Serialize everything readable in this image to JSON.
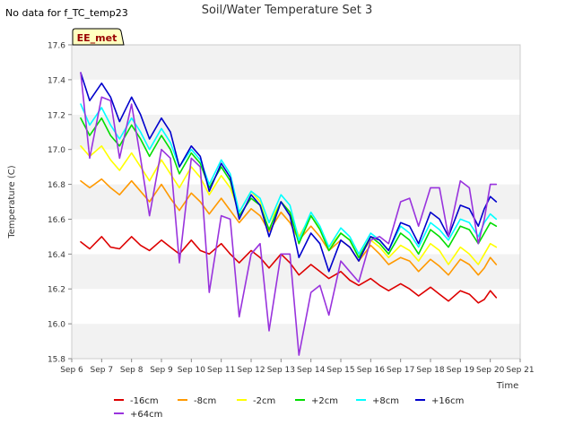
{
  "no_data_note": "No data for f_TC_temp23",
  "badge": "EE_met",
  "chart_data": {
    "type": "line",
    "title": "Soil/Water Temperature Set 3",
    "xlabel": "Time",
    "ylabel": "Temperature (C)",
    "xlim": [
      6,
      21
    ],
    "ylim": [
      15.8,
      17.6
    ],
    "yticks": [
      15.8,
      16.0,
      16.2,
      16.4,
      16.6,
      16.8,
      17.0,
      17.2,
      17.4,
      17.6
    ],
    "xticks": [
      6,
      7,
      8,
      9,
      10,
      11,
      12,
      13,
      14,
      15,
      16,
      17,
      18,
      19,
      20,
      21
    ],
    "xtick_labels": [
      "Sep 6",
      "Sep 7",
      "Sep 8",
      "Sep 9",
      "Sep 10",
      "Sep 11",
      "Sep 12",
      "Sep 13",
      "Sep 14",
      "Sep 15",
      "Sep 16",
      "Sep 17",
      "Sep 18",
      "Sep 19",
      "Sep 20",
      "Sep 21"
    ],
    "grid": "horizontal bands",
    "legend_position": "bottom",
    "series": [
      {
        "name": "-16cm",
        "color": "#dd0000",
        "x": [
          6.3,
          6.6,
          7.0,
          7.3,
          7.6,
          8.0,
          8.3,
          8.6,
          9.0,
          9.3,
          9.6,
          10.0,
          10.3,
          10.6,
          11.0,
          11.3,
          11.6,
          12.0,
          12.3,
          12.6,
          13.0,
          13.3,
          13.6,
          14.0,
          14.3,
          14.6,
          15.0,
          15.3,
          15.6,
          16.0,
          16.3,
          16.6,
          17.0,
          17.3,
          17.6,
          18.0,
          18.3,
          18.6,
          19.0,
          19.3,
          19.6,
          19.8,
          20.0,
          20.2
        ],
        "y": [
          16.47,
          16.43,
          16.5,
          16.44,
          16.43,
          16.5,
          16.45,
          16.42,
          16.48,
          16.44,
          16.4,
          16.48,
          16.42,
          16.4,
          16.46,
          16.4,
          16.35,
          16.42,
          16.38,
          16.32,
          16.4,
          16.35,
          16.28,
          16.34,
          16.3,
          16.26,
          16.3,
          16.25,
          16.22,
          16.26,
          16.22,
          16.19,
          16.23,
          16.2,
          16.16,
          16.21,
          16.17,
          16.13,
          16.19,
          16.17,
          16.12,
          16.14,
          16.19,
          16.15
        ]
      },
      {
        "name": "-8cm",
        "color": "#ff9900",
        "x": [
          6.3,
          6.6,
          7.0,
          7.3,
          7.6,
          8.0,
          8.3,
          8.6,
          9.0,
          9.3,
          9.6,
          10.0,
          10.3,
          10.6,
          11.0,
          11.3,
          11.6,
          12.0,
          12.3,
          12.6,
          13.0,
          13.3,
          13.6,
          14.0,
          14.3,
          14.6,
          15.0,
          15.3,
          15.6,
          16.0,
          16.3,
          16.6,
          17.0,
          17.3,
          17.6,
          18.0,
          18.3,
          18.6,
          19.0,
          19.3,
          19.6,
          19.8,
          20.0,
          20.2
        ],
        "y": [
          16.82,
          16.78,
          16.83,
          16.78,
          16.74,
          16.82,
          16.76,
          16.7,
          16.8,
          16.72,
          16.65,
          16.75,
          16.7,
          16.63,
          16.72,
          16.65,
          16.58,
          16.66,
          16.62,
          16.53,
          16.64,
          16.58,
          16.48,
          16.56,
          16.5,
          16.42,
          16.48,
          16.44,
          16.36,
          16.45,
          16.4,
          16.34,
          16.38,
          16.36,
          16.3,
          16.37,
          16.33,
          16.28,
          16.37,
          16.34,
          16.28,
          16.32,
          16.38,
          16.34
        ]
      },
      {
        "name": "-2cm",
        "color": "#ffff00",
        "x": [
          6.3,
          6.6,
          7.0,
          7.3,
          7.6,
          8.0,
          8.3,
          8.6,
          9.0,
          9.3,
          9.6,
          10.0,
          10.3,
          10.6,
          11.0,
          11.3,
          11.6,
          12.0,
          12.3,
          12.6,
          13.0,
          13.3,
          13.6,
          14.0,
          14.3,
          14.6,
          15.0,
          15.3,
          15.6,
          16.0,
          16.3,
          16.6,
          17.0,
          17.3,
          17.6,
          18.0,
          18.3,
          18.6,
          19.0,
          19.3,
          19.6,
          19.8,
          20.0,
          20.2
        ],
        "y": [
          17.02,
          16.96,
          17.02,
          16.94,
          16.88,
          16.98,
          16.9,
          16.82,
          16.94,
          16.86,
          16.78,
          16.9,
          16.84,
          16.74,
          16.85,
          16.78,
          16.64,
          16.76,
          16.7,
          16.58,
          16.7,
          16.64,
          16.5,
          16.62,
          16.55,
          16.44,
          16.52,
          16.48,
          16.38,
          16.48,
          16.44,
          16.38,
          16.45,
          16.42,
          16.36,
          16.46,
          16.42,
          16.34,
          16.44,
          16.4,
          16.34,
          16.4,
          16.46,
          16.44
        ]
      },
      {
        "name": "+2cm",
        "color": "#00dd00",
        "x": [
          6.3,
          6.6,
          7.0,
          7.3,
          7.6,
          8.0,
          8.3,
          8.6,
          9.0,
          9.3,
          9.6,
          10.0,
          10.3,
          10.6,
          11.0,
          11.3,
          11.6,
          12.0,
          12.3,
          12.6,
          13.0,
          13.3,
          13.6,
          14.0,
          14.3,
          14.6,
          15.0,
          15.3,
          15.6,
          16.0,
          16.3,
          16.6,
          17.0,
          17.3,
          17.6,
          18.0,
          18.3,
          18.6,
          19.0,
          19.3,
          19.6,
          19.8,
          20.0,
          20.2
        ],
        "y": [
          17.18,
          17.08,
          17.18,
          17.08,
          17.02,
          17.14,
          17.06,
          16.96,
          17.08,
          17.0,
          16.86,
          16.98,
          16.92,
          16.78,
          16.9,
          16.82,
          16.62,
          16.72,
          16.68,
          16.54,
          16.7,
          16.64,
          16.46,
          16.62,
          16.54,
          16.42,
          16.52,
          16.48,
          16.38,
          16.5,
          16.46,
          16.4,
          16.52,
          16.48,
          16.4,
          16.54,
          16.5,
          16.44,
          16.56,
          16.54,
          16.46,
          16.52,
          16.58,
          16.56
        ]
      },
      {
        "name": "+8cm",
        "color": "#00ffff",
        "x": [
          6.3,
          6.6,
          7.0,
          7.3,
          7.6,
          8.0,
          8.3,
          8.6,
          9.0,
          9.3,
          9.6,
          10.0,
          10.3,
          10.6,
          11.0,
          11.3,
          11.6,
          12.0,
          12.3,
          12.6,
          13.0,
          13.3,
          13.6,
          14.0,
          14.3,
          14.6,
          15.0,
          15.3,
          15.6,
          16.0,
          16.3,
          16.6,
          17.0,
          17.3,
          17.6,
          18.0,
          18.3,
          18.6,
          19.0,
          19.3,
          19.6,
          19.8,
          20.0,
          20.2
        ],
        "y": [
          17.26,
          17.14,
          17.24,
          17.14,
          17.06,
          17.18,
          17.1,
          17.0,
          17.12,
          17.04,
          16.9,
          17.0,
          16.94,
          16.8,
          16.94,
          16.86,
          16.64,
          16.76,
          16.72,
          16.58,
          16.74,
          16.68,
          16.48,
          16.64,
          16.56,
          16.44,
          16.55,
          16.5,
          16.4,
          16.52,
          16.48,
          16.42,
          16.56,
          16.52,
          16.44,
          16.58,
          16.54,
          16.48,
          16.6,
          16.58,
          16.5,
          16.58,
          16.63,
          16.6
        ]
      },
      {
        "name": "+16cm",
        "color": "#0000cc",
        "x": [
          6.3,
          6.6,
          7.0,
          7.3,
          7.6,
          8.0,
          8.3,
          8.6,
          9.0,
          9.3,
          9.6,
          10.0,
          10.3,
          10.6,
          11.0,
          11.3,
          11.6,
          12.0,
          12.3,
          12.6,
          13.0,
          13.3,
          13.6,
          14.0,
          14.3,
          14.6,
          15.0,
          15.3,
          15.6,
          16.0,
          16.3,
          16.6,
          17.0,
          17.3,
          17.6,
          18.0,
          18.3,
          18.6,
          19.0,
          19.3,
          19.6,
          19.8,
          20.0,
          20.2
        ],
        "y": [
          17.44,
          17.28,
          17.38,
          17.3,
          17.16,
          17.3,
          17.2,
          17.06,
          17.18,
          17.1,
          16.9,
          17.02,
          16.96,
          16.76,
          16.92,
          16.84,
          16.6,
          16.74,
          16.68,
          16.5,
          16.7,
          16.62,
          16.38,
          16.52,
          16.46,
          16.3,
          16.48,
          16.44,
          16.36,
          16.5,
          16.48,
          16.42,
          16.58,
          16.56,
          16.46,
          16.64,
          16.6,
          16.5,
          16.68,
          16.66,
          16.56,
          16.66,
          16.73,
          16.7
        ]
      },
      {
        "name": "+64cm",
        "color": "#9933dd",
        "x": [
          6.3,
          6.6,
          7.0,
          7.3,
          7.6,
          8.0,
          8.3,
          8.6,
          9.0,
          9.3,
          9.6,
          10.0,
          10.3,
          10.6,
          11.0,
          11.3,
          11.6,
          12.0,
          12.3,
          12.6,
          13.0,
          13.3,
          13.6,
          14.0,
          14.3,
          14.6,
          15.0,
          15.3,
          15.6,
          16.0,
          16.3,
          16.6,
          17.0,
          17.3,
          17.6,
          18.0,
          18.3,
          18.6,
          19.0,
          19.3,
          19.6,
          19.8,
          20.0,
          20.2
        ],
        "y": [
          17.44,
          16.95,
          17.3,
          17.28,
          16.95,
          17.26,
          16.95,
          16.62,
          17.0,
          16.95,
          16.35,
          16.95,
          16.9,
          16.18,
          16.62,
          16.6,
          16.04,
          16.4,
          16.46,
          15.96,
          16.4,
          16.4,
          15.82,
          16.18,
          16.22,
          16.05,
          16.36,
          16.3,
          16.24,
          16.48,
          16.5,
          16.46,
          16.7,
          16.72,
          16.56,
          16.78,
          16.78,
          16.5,
          16.82,
          16.78,
          16.46,
          16.6,
          16.8,
          16.8
        ]
      }
    ]
  }
}
